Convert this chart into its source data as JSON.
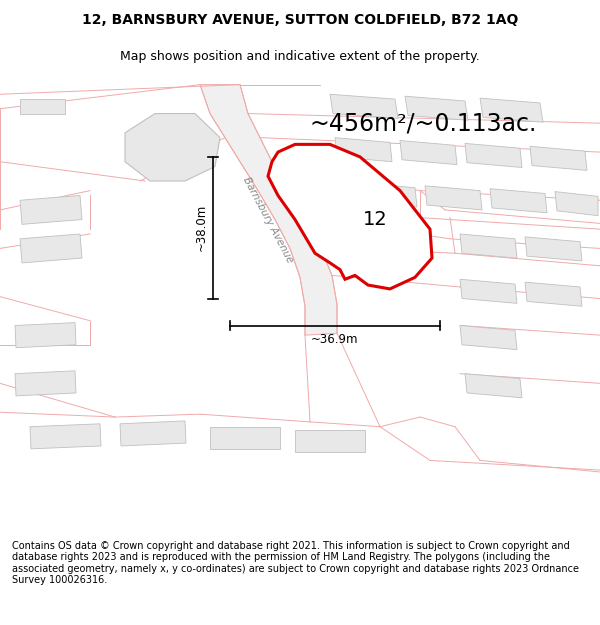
{
  "title_line1": "12, BARNSBURY AVENUE, SUTTON COLDFIELD, B72 1AQ",
  "title_line2": "Map shows position and indicative extent of the property.",
  "area_text": "~456m²/~0.113ac.",
  "label_12": "12",
  "dim_width": "~36.9m",
  "dim_height": "~38.0m",
  "road_label": "Barnsbury Avenue",
  "footer_text": "Contains OS data © Crown copyright and database right 2021. This information is subject to Crown copyright and database rights 2023 and is reproduced with the permission of HM Land Registry. The polygons (including the associated geometry, namely x, y co-ordinates) are subject to Crown copyright and database rights 2023 Ordnance Survey 100026316.",
  "map_bg": "#ffffff",
  "plot_fill": "#f0f0f0",
  "plot_edge": "#dd0000",
  "building_fill": "#e8e8e8",
  "building_edge": "#aaaaaa",
  "road_fill": "#eeeeee",
  "map_line_color": "#f0aaaa",
  "dark_line_color": "#c0c0c0",
  "title_fontsize": 10,
  "subtitle_fontsize": 9,
  "area_fontsize": 17,
  "label_fontsize": 14,
  "dim_fontsize": 8.5,
  "footer_fontsize": 7.0
}
